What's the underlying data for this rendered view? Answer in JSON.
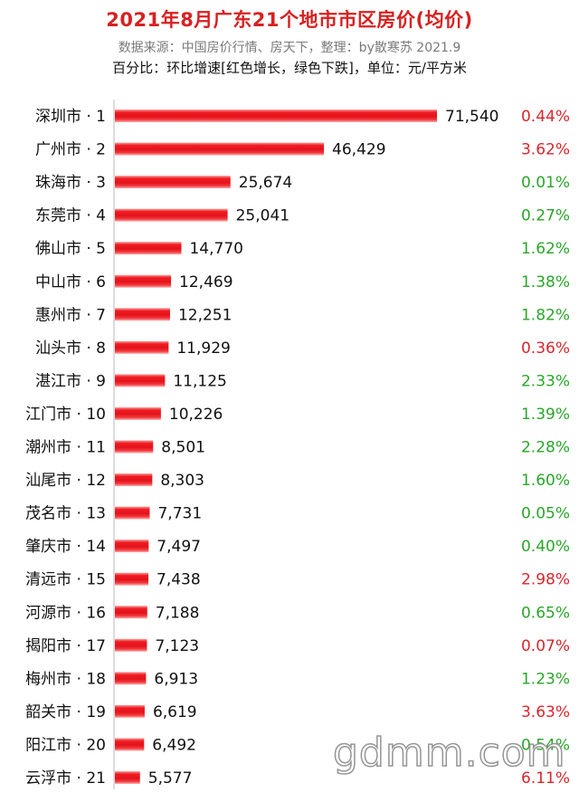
{
  "header": {
    "title": "2021年8月广东21个地市市区房价(均价)",
    "source": "数据来源：中国房价行情、房天下，整理：by散寒苏 2021.9",
    "note": "百分比：环比增速[红色增长，绿色下跌]，单位：元/平方米"
  },
  "watermark": "gdmm.com",
  "colors": {
    "bar": "#e8161c",
    "up": "#d8262c",
    "down": "#2aa62a"
  },
  "chart_data": {
    "type": "bar",
    "orientation": "horizontal",
    "categories": [
      "深圳市 · 1",
      "广州市 · 2",
      "珠海市 · 3",
      "东莞市 · 4",
      "佛山市 · 5",
      "中山市 · 6",
      "惠州市 · 7",
      "汕头市 · 8",
      "湛江市 · 9",
      "江门市 · 10",
      "潮州市 · 11",
      "汕尾市 · 12",
      "茂名市 · 13",
      "肇庆市 · 14",
      "清远市 · 15",
      "河源市 · 16",
      "揭阳市 · 17",
      "梅州市 · 18",
      "韶关市 · 19",
      "阳江市 · 20",
      "云浮市 · 21"
    ],
    "values": [
      71540,
      46429,
      25674,
      25041,
      14770,
      12469,
      12251,
      11929,
      11125,
      10226,
      8501,
      8303,
      7731,
      7497,
      7438,
      7188,
      7123,
      6913,
      6619,
      6492,
      5577
    ],
    "value_labels": [
      "71,540",
      "46,429",
      "25,674",
      "25,041",
      "14,770",
      "12,469",
      "12,251",
      "11,929",
      "11,125",
      "10,226",
      "8,501",
      "8,303",
      "7,731",
      "7,497",
      "7,438",
      "7,188",
      "7,123",
      "6,913",
      "6,619",
      "6,492",
      "5,577"
    ],
    "mom_change": [
      "0.44%",
      "3.62%",
      "0.01%",
      "0.27%",
      "1.62%",
      "1.38%",
      "1.82%",
      "0.36%",
      "2.33%",
      "1.39%",
      "2.28%",
      "1.60%",
      "0.05%",
      "0.40%",
      "2.98%",
      "0.65%",
      "0.07%",
      "1.23%",
      "3.63%",
      "0.54%",
      "6.11%"
    ],
    "mom_direction": [
      "up",
      "up",
      "down",
      "down",
      "down",
      "down",
      "down",
      "up",
      "down",
      "down",
      "down",
      "down",
      "down",
      "down",
      "up",
      "down",
      "up",
      "down",
      "up",
      "down",
      "up"
    ],
    "xlim": [
      0,
      71540
    ],
    "grid": false,
    "legend": "none"
  }
}
